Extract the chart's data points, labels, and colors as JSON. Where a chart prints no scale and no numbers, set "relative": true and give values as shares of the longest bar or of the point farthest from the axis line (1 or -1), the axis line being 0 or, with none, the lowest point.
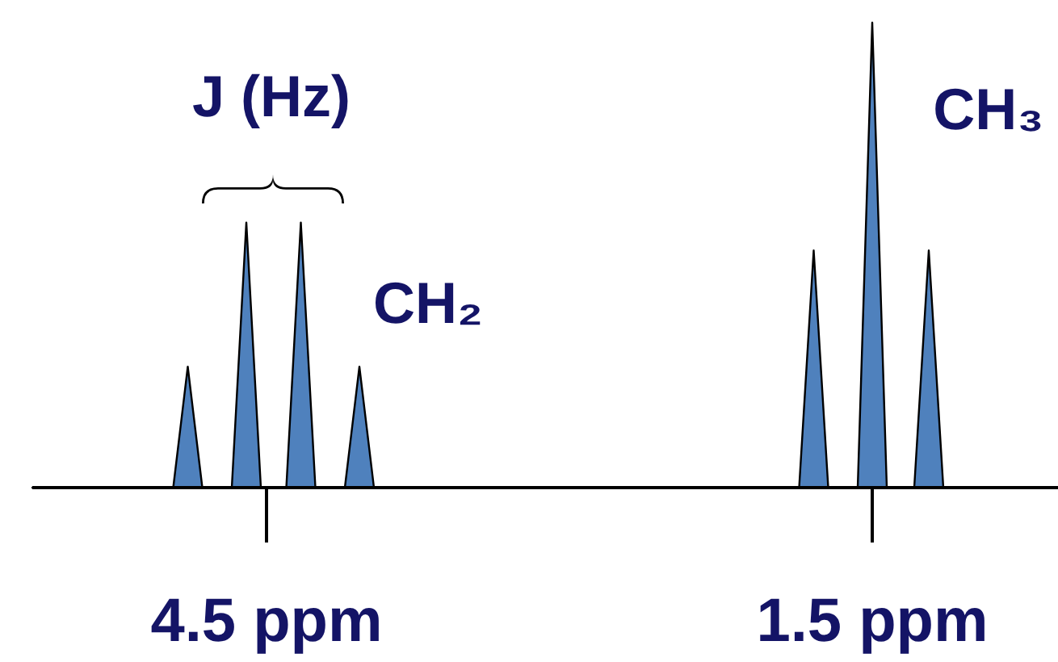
{
  "chart_data": {
    "type": "area",
    "relative": true,
    "color": "#4f81bd",
    "x": [
      5.66,
      4.962,
      4.89,
      4.818,
      4.672,
      4.6,
      4.528,
      4.402,
      4.33,
      4.258,
      4.112,
      4.04,
      3.968,
      1.862,
      1.79,
      1.718,
      1.572,
      1.5,
      1.428,
      1.292,
      1.22,
      1.148,
      0.58
    ],
    "values": [
      0,
      0,
      0.26,
      0,
      0,
      0.57,
      0,
      0,
      0.57,
      0,
      0,
      0.26,
      0,
      0,
      0.51,
      0,
      0,
      1,
      0,
      0,
      0.51,
      0,
      0
    ],
    "xlim": [
      5.66,
      0.58
    ],
    "xticks": [
      {
        "value": 4.5,
        "label": "4.5 ppm"
      },
      {
        "value": 1.5,
        "label": "1.5 ppm"
      }
    ],
    "annotations": [
      "J (Hz)",
      "CH₂",
      "CH₃"
    ]
  }
}
